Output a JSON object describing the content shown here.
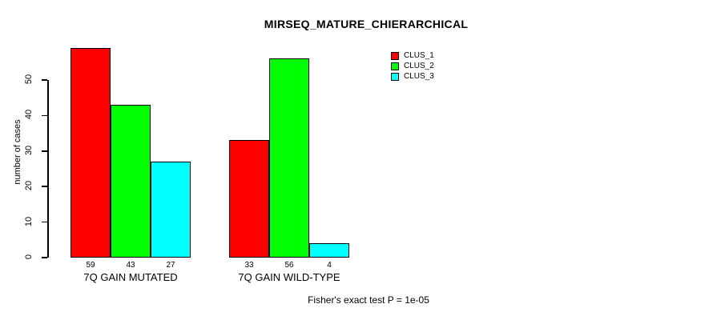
{
  "chart_data": {
    "type": "bar",
    "title": "MIRSEQ_MATURE_CHIERARCHICAL",
    "ylabel": "number of cases",
    "xlabel": "",
    "categories": [
      "7Q GAIN MUTATED",
      "7Q GAIN WILD-TYPE"
    ],
    "series": [
      {
        "name": "CLUS_1",
        "color": "#ff0000",
        "values": [
          59,
          33
        ]
      },
      {
        "name": "CLUS_2",
        "color": "#00ff00",
        "values": [
          43,
          56
        ]
      },
      {
        "name": "CLUS_3",
        "color": "#00ffff",
        "values": [
          27,
          4
        ]
      }
    ],
    "yticks": [
      0,
      10,
      20,
      30,
      40,
      50
    ],
    "ylim": [
      0,
      59
    ],
    "grid": false,
    "show_bar_values": true,
    "legend_position": "top-right",
    "legend_entries": [
      "CLUS_1",
      "CLUS_2",
      "CLUS_3"
    ],
    "annotation": "Fisher's exact test P = 1e-05"
  },
  "colors": {
    "clus_1": "#ff0000",
    "clus_2": "#00ff00",
    "clus_3": "#00ffff",
    "axis": "#000000",
    "background": "#ffffff"
  }
}
